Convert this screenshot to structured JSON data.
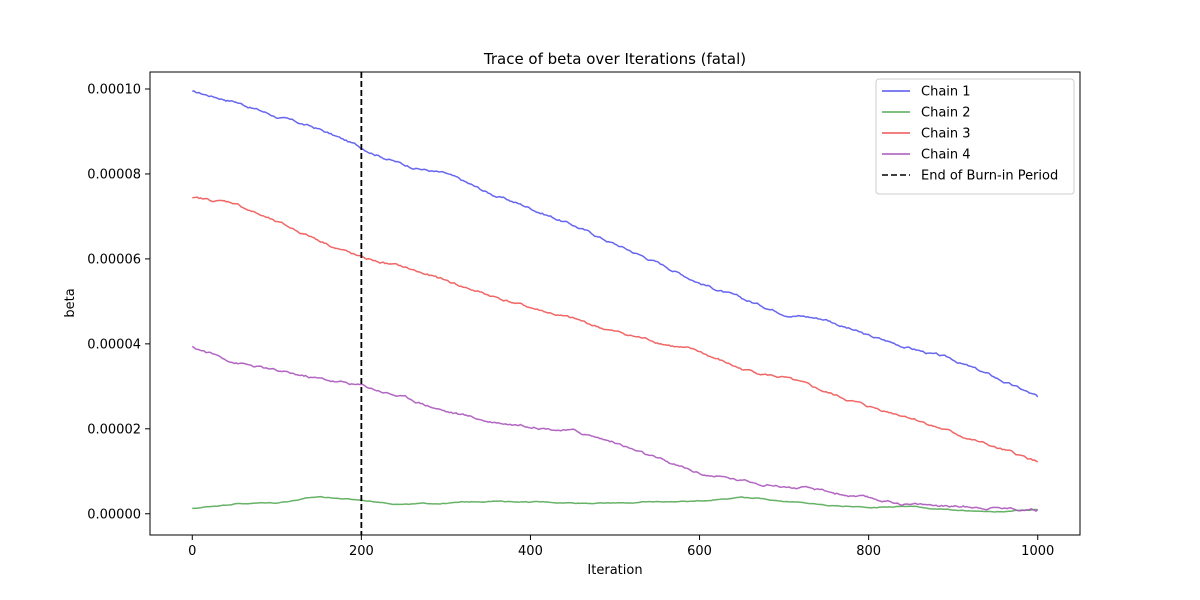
{
  "chart_data": {
    "type": "line",
    "title": "Trace of beta over Iterations (fatal)",
    "xlabel": "Iteration",
    "ylabel": "beta",
    "xlim": [
      -50,
      1050
    ],
    "ylim": [
      -5e-06,
      0.000104
    ],
    "xticks": [
      0,
      200,
      400,
      600,
      800,
      1000
    ],
    "xtick_labels": [
      "0",
      "200",
      "400",
      "600",
      "800",
      "1000"
    ],
    "yticks": [
      0,
      2e-05,
      4e-05,
      6e-05,
      8e-05,
      0.0001
    ],
    "ytick_labels": [
      "0.00000",
      "0.00002",
      "0.00004",
      "0.00006",
      "0.00008",
      "0.00010"
    ],
    "grid": false,
    "legend_position": "upper-right",
    "x": [
      0,
      50,
      100,
      150,
      200,
      250,
      300,
      350,
      400,
      450,
      500,
      550,
      600,
      650,
      700,
      750,
      800,
      850,
      900,
      950,
      1000
    ],
    "series": [
      {
        "name": "Chain 1",
        "color": "#5555ee",
        "values": [
          9.93e-05,
          9.72e-05,
          9.35e-05,
          9.05e-05,
          8.62e-05,
          8.22e-05,
          8e-05,
          7.55e-05,
          7.2e-05,
          6.8e-05,
          6.35e-05,
          5.92e-05,
          5.45e-05,
          5.05e-05,
          4.73e-05,
          4.58e-05,
          4.18e-05,
          3.9e-05,
          3.62e-05,
          3.2e-05,
          2.75e-05
        ]
      },
      {
        "name": "Chain 2",
        "color": "#55aa55",
        "values": [
          1.2e-06,
          2.4e-06,
          2.6e-06,
          4e-06,
          3.2e-06,
          2.2e-06,
          2.5e-06,
          3e-06,
          2.8e-06,
          2.6e-06,
          2.5e-06,
          2.8e-06,
          3e-06,
          4e-06,
          3e-06,
          2e-06,
          1.5e-06,
          1.8e-06,
          8e-07,
          5e-07,
          9e-07
        ]
      },
      {
        "name": "Chain 3",
        "color": "#f05555",
        "values": [
          7.42e-05,
          7.32e-05,
          6.85e-05,
          6.45e-05,
          6.02e-05,
          5.8e-05,
          5.48e-05,
          5.15e-05,
          4.85e-05,
          4.58e-05,
          4.28e-05,
          4.05e-05,
          3.8e-05,
          3.4e-05,
          3.2e-05,
          2.85e-05,
          2.52e-05,
          2.28e-05,
          1.9e-05,
          1.55e-05,
          1.22e-05
        ]
      },
      {
        "name": "Chain 4",
        "color": "#aa55bb",
        "values": [
          3.92e-05,
          3.58e-05,
          3.35e-05,
          3.18e-05,
          3.02e-05,
          2.75e-05,
          2.42e-05,
          2.18e-05,
          2.08e-05,
          1.95e-05,
          1.68e-05,
          1.28e-05,
          9.5e-06,
          7.8e-06,
          6.5e-06,
          5.2e-06,
          3.5e-06,
          2.2e-06,
          1.8e-06,
          1.5e-06,
          1e-06
        ]
      }
    ],
    "reference_lines": [
      {
        "name": "End of Burn-in Period",
        "orientation": "vertical",
        "x": 200,
        "color": "#000000",
        "style": "dashed"
      }
    ]
  }
}
